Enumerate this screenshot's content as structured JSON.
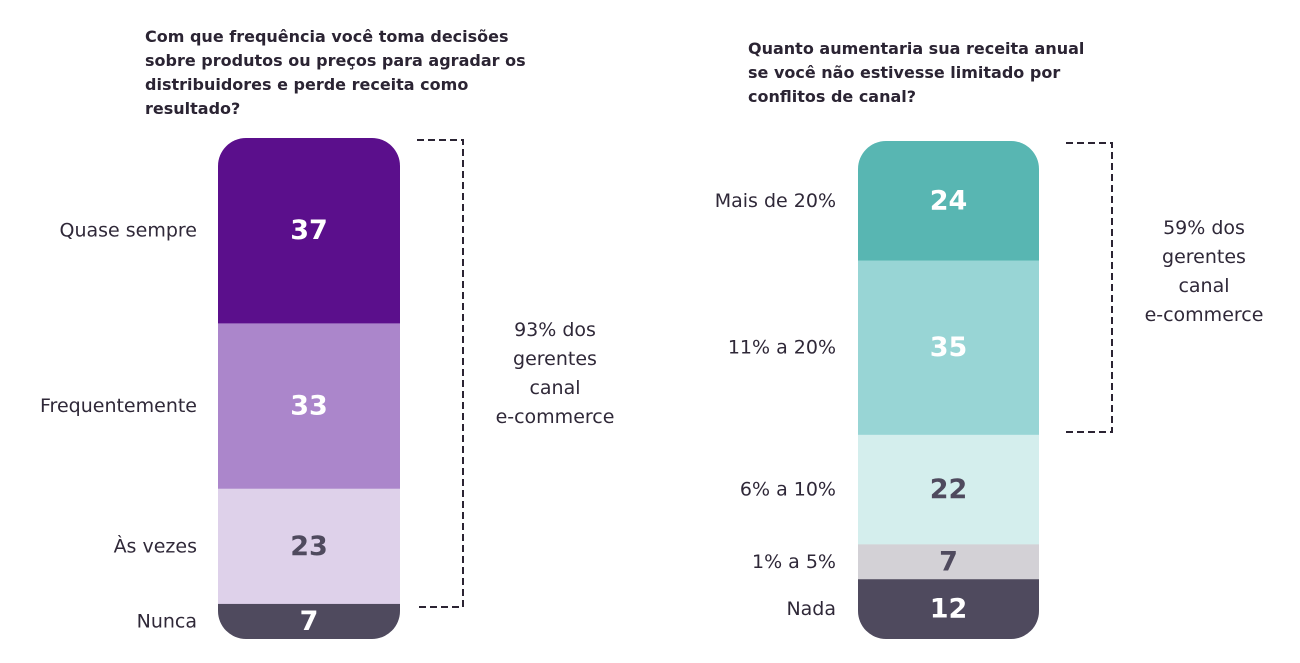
{
  "chart_data": [
    {
      "type": "bar",
      "stacked": true,
      "title": "Com que frequência você toma decisões\nsobre produtos ou preços para agradar os\ndistribuidores e perde receita como\nresultado?",
      "categories": [
        "Quase sempre",
        "Frequentemente",
        "Às vezes",
        "Nunca"
      ],
      "values": [
        37,
        33,
        23,
        7
      ],
      "colors": [
        "#5b0f8c",
        "#ab86cb",
        "#ded1ea",
        "#4f4a5e"
      ],
      "label_colors": [
        "#ffffff",
        "#ffffff",
        "#4f4a5e",
        "#ffffff"
      ],
      "bracket_note": "93%  dos\ngerentes\ncanal\ne-commerce"
    },
    {
      "type": "bar",
      "stacked": true,
      "title": "Quanto aumentaria sua receita anual\nse você não estivesse limitado por\nconflitos de canal?",
      "categories": [
        "Mais de 20%",
        "11% a 20%",
        "6% a 10%",
        "1% a 5%",
        "Nada"
      ],
      "values": [
        24,
        35,
        22,
        7,
        12
      ],
      "colors": [
        "#58b6b2",
        "#98d5d5",
        "#d4eeed",
        "#d3d1d6",
        "#4f4a5e"
      ],
      "label_colors": [
        "#ffffff",
        "#ffffff",
        "#4f4a5e",
        "#4f4a5e",
        "#ffffff"
      ],
      "bracket_note": "59% dos\ngerentes\ncanal\ne-commerce"
    }
  ]
}
